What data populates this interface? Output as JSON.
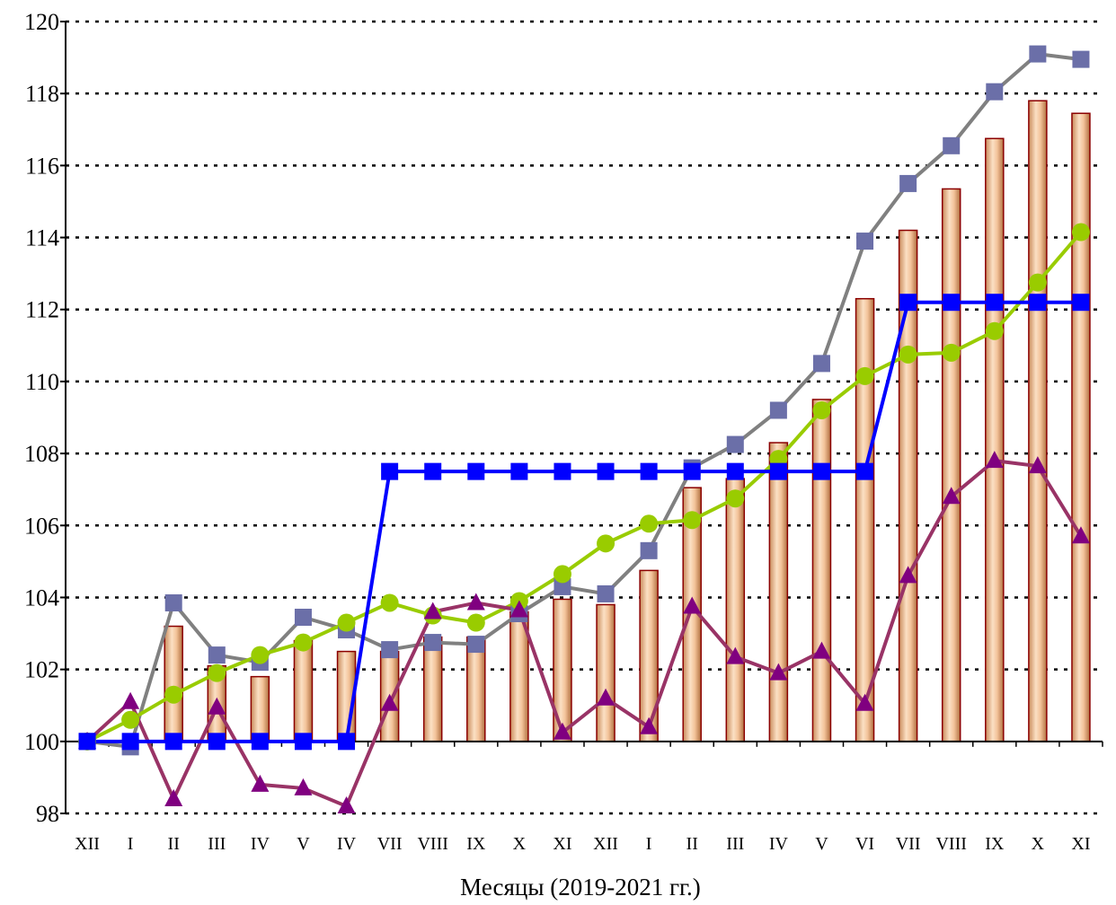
{
  "chart_data": {
    "type": "bar",
    "xlabel": "Месяцы (2019-2021 гг.)",
    "ylabel": "",
    "ylim": [
      98,
      120
    ],
    "yticks": [
      98,
      100,
      102,
      104,
      106,
      108,
      110,
      112,
      114,
      116,
      118,
      120
    ],
    "grid": "horizontal dotted",
    "baseline": 100,
    "categories": [
      "XII",
      "I",
      "II",
      "III",
      "IV",
      "V",
      "IV",
      "VII",
      "VIII",
      "IX",
      "X",
      "XI",
      "XII",
      "I",
      "II",
      "III",
      "IV",
      "V",
      "VI",
      "VII",
      "VIII",
      "IX",
      "X",
      "XI"
    ],
    "series": [
      {
        "type": "bar",
        "color": "#f0b890",
        "border_color": "#8b0000",
        "values": [
          100,
          100,
          103.2,
          102.1,
          101.8,
          102.8,
          102.5,
          102.5,
          102.9,
          102.9,
          103.6,
          103.95,
          103.8,
          104.75,
          107.05,
          107.3,
          108.3,
          109.5,
          112.3,
          114.2,
          115.35,
          116.75,
          117.8,
          117.45
        ]
      },
      {
        "type": "line",
        "marker": "square",
        "color": "#808080",
        "marker_color": "#6b6fa8",
        "values": [
          100,
          99.85,
          103.85,
          102.4,
          102.2,
          103.45,
          103.1,
          102.55,
          102.75,
          102.7,
          103.55,
          104.3,
          104.1,
          105.3,
          107.6,
          108.25,
          109.2,
          110.5,
          113.9,
          115.5,
          116.55,
          118.05,
          119.1,
          118.95
        ]
      },
      {
        "type": "line",
        "marker": "circle",
        "color": "#99cc00",
        "marker_color": "#99cc00",
        "values": [
          100,
          100.6,
          101.3,
          101.9,
          102.4,
          102.75,
          103.3,
          103.85,
          103.5,
          103.3,
          103.9,
          104.65,
          105.5,
          106.05,
          106.15,
          106.75,
          107.85,
          109.2,
          110.15,
          110.75,
          110.8,
          111.4,
          112.75,
          114.15
        ]
      },
      {
        "type": "line",
        "marker": "triangle",
        "color": "#993366",
        "marker_color": "#800080",
        "values": [
          100,
          101.1,
          98.4,
          100.95,
          98.8,
          98.7,
          98.2,
          101.05,
          103.6,
          103.85,
          103.65,
          100.25,
          101.2,
          100.4,
          103.75,
          102.35,
          101.9,
          102.5,
          101.05,
          104.6,
          106.8,
          107.8,
          107.65,
          105.7
        ]
      },
      {
        "type": "line",
        "marker": "square",
        "color": "#0000ff",
        "marker_color": "#0000ff",
        "values": [
          100,
          100,
          100,
          100,
          100,
          100,
          100,
          107.5,
          107.5,
          107.5,
          107.5,
          107.5,
          107.5,
          107.5,
          107.5,
          107.5,
          107.5,
          107.5,
          107.5,
          112.2,
          112.2,
          112.2,
          112.2,
          112.2
        ]
      }
    ]
  }
}
